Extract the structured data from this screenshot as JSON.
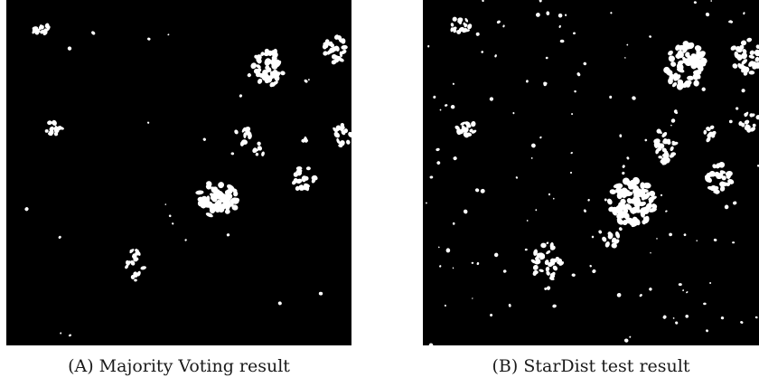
{
  "figure": {
    "panels": [
      {
        "id": "a",
        "caption_label": "(A)",
        "caption_text": "Majority Voting result",
        "image": "binary segmentation mask: white nuclei on black background"
      },
      {
        "id": "b",
        "caption_label": "(B)",
        "caption_text": "StarDist test result",
        "image": "binary segmentation mask: white nuclei on black background"
      }
    ]
  }
}
